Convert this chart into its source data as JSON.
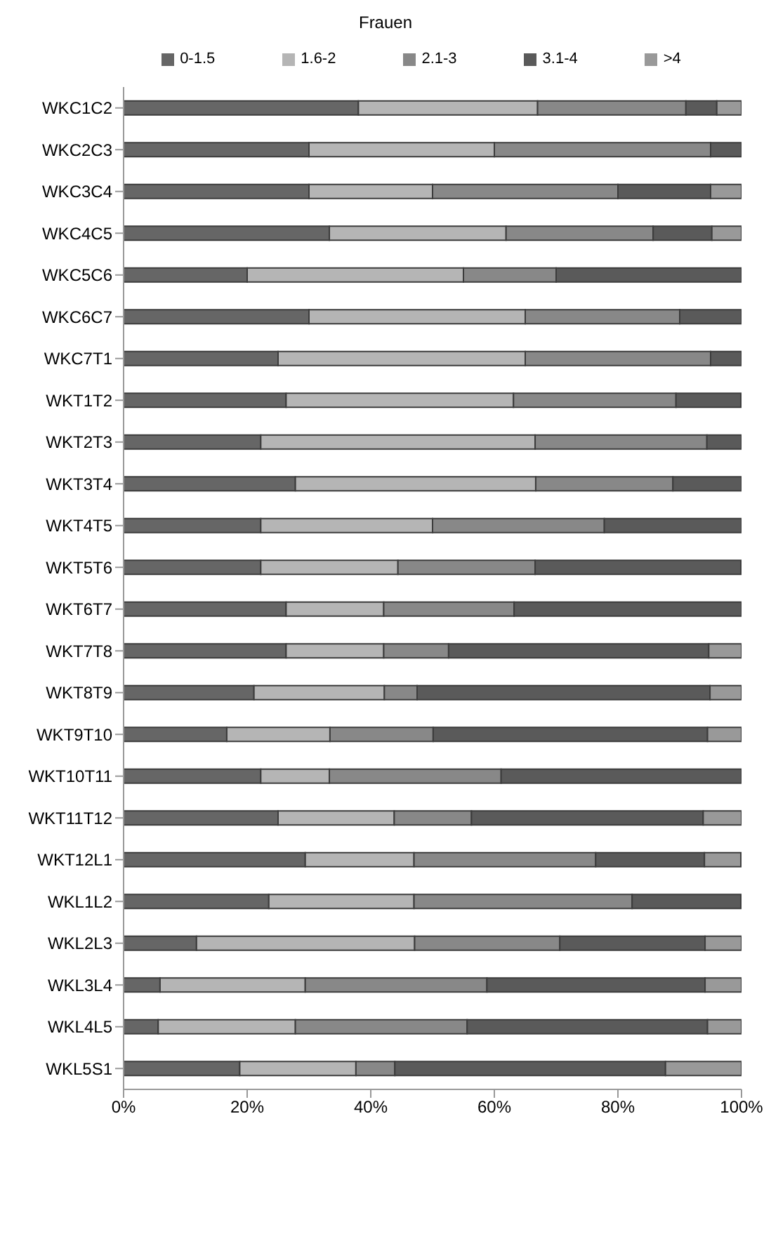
{
  "chart_data": {
    "type": "bar",
    "orientation": "horizontal",
    "stacked": true,
    "title": "Frauen",
    "legend": "top",
    "grid": false,
    "categories": [
      "WKC1C2",
      "WKC2C3",
      "WKC3C4",
      "WKC4C5",
      "WKC5C6",
      "WKC6C7",
      "WKC7T1",
      "WKT1T2",
      "WKT2T3",
      "WKT3T4",
      "WKT4T5",
      "WKT5T6",
      "WKT6T7",
      "WKT7T8",
      "WKT8T9",
      "WKT9T10",
      "WKT10T11",
      "WKT11T12",
      "WKT12L1",
      "WKL1L2",
      "WKL2L3",
      "WKL3L4",
      "WKL4L5",
      "WKL5S1"
    ],
    "series": [
      {
        "name": "0-1.5",
        "color": "#666666",
        "values": [
          38,
          30,
          30,
          33.3,
          20,
          30,
          25,
          26.3,
          22.2,
          27.8,
          22.2,
          22.2,
          26.3,
          26.3,
          21.1,
          16.7,
          22.2,
          25,
          29.4,
          23.5,
          11.8,
          5.9,
          5.6,
          18.8
        ]
      },
      {
        "name": "1.6-2",
        "color": "#b5b5b5",
        "values": [
          29,
          30,
          20,
          28.6,
          35,
          35,
          40,
          36.8,
          44.4,
          38.9,
          27.8,
          22.2,
          15.8,
          15.8,
          21.1,
          16.7,
          11.1,
          18.8,
          17.6,
          23.5,
          35.3,
          23.5,
          22.2,
          18.8
        ]
      },
      {
        "name": "2.1-3",
        "color": "#888888",
        "values": [
          24,
          35,
          30,
          23.8,
          15,
          25,
          30,
          26.3,
          27.8,
          22.2,
          27.8,
          22.2,
          21.1,
          10.5,
          5.3,
          16.7,
          27.8,
          12.5,
          29.4,
          35.3,
          23.5,
          29.4,
          27.8,
          6.3
        ]
      },
      {
        "name": "3.1-4",
        "color": "#5a5a5a",
        "values": [
          5,
          5,
          15,
          9.5,
          30,
          10,
          5,
          10.5,
          5.6,
          11.1,
          22.2,
          33.3,
          36.8,
          42.1,
          47.4,
          44.4,
          38.9,
          37.5,
          17.6,
          17.6,
          23.5,
          35.3,
          38.9,
          43.8
        ]
      },
      {
        "name": ">4",
        "color": "#999999",
        "values": [
          4,
          0,
          5,
          4.8,
          0,
          0,
          0,
          0,
          0,
          0,
          0,
          0,
          0,
          5.3,
          5.3,
          5.6,
          0,
          6.3,
          5.9,
          0,
          5.9,
          5.9,
          5.6,
          12.5
        ]
      }
    ],
    "xlim": [
      0,
      100
    ],
    "xticks": [
      {
        "value": 0,
        "label": "0%"
      },
      {
        "value": 20,
        "label": "20%"
      },
      {
        "value": 40,
        "label": "40%"
      },
      {
        "value": 60,
        "label": "60%"
      },
      {
        "value": 80,
        "label": "80%"
      },
      {
        "value": 100,
        "label": "100%"
      }
    ]
  }
}
